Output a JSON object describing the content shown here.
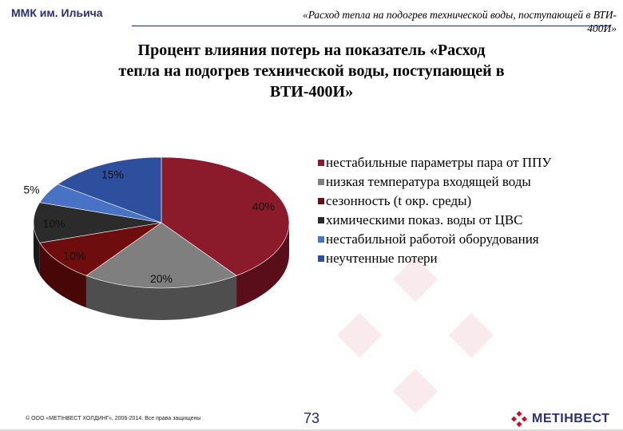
{
  "header": {
    "company": "ММК им. Ильича",
    "title_line1": "«Расход тепла на подогрев технической воды, поступающей в ВТИ-",
    "title_line2": "400И»"
  },
  "slide": {
    "title_line1": "Процент влияния потерь на показатель «Расход",
    "title_line2": "тепла на подогрев технической воды, поступающей в",
    "title_line3": "ВТИ-400И»"
  },
  "chart_data": {
    "type": "pie",
    "style": "3d",
    "legend_position": "right",
    "categories": [
      "нестабильные параметры пара от ППУ",
      "низкая температура входящей воды",
      "сезонность (t окр. среды)",
      "химическими показ. воды от ЦВС",
      "нестабильной работой оборудования",
      "неучтенные потери"
    ],
    "values": [
      40,
      20,
      10,
      10,
      5,
      15
    ],
    "data_labels": [
      "40%",
      "20%",
      "10%",
      "10%",
      "5%",
      "15%"
    ],
    "colors": [
      "#8b1a2b",
      "#7f7f7f",
      "#6e0d0d",
      "#2b2b2b",
      "#4a72c4",
      "#2d4f9e"
    ],
    "side_colors": [
      "#5a0e1a",
      "#4e4e4e",
      "#470707",
      "#1a1a1a",
      "#2f4f8e",
      "#1d3670"
    ]
  },
  "footer": {
    "copyright": "© ООО «МЕТІНВЕСТ ХОЛДИНГ», 2006-2014. Все права защищены",
    "page_number": "73",
    "logo_text": "МЕТІНВЕСТ"
  }
}
